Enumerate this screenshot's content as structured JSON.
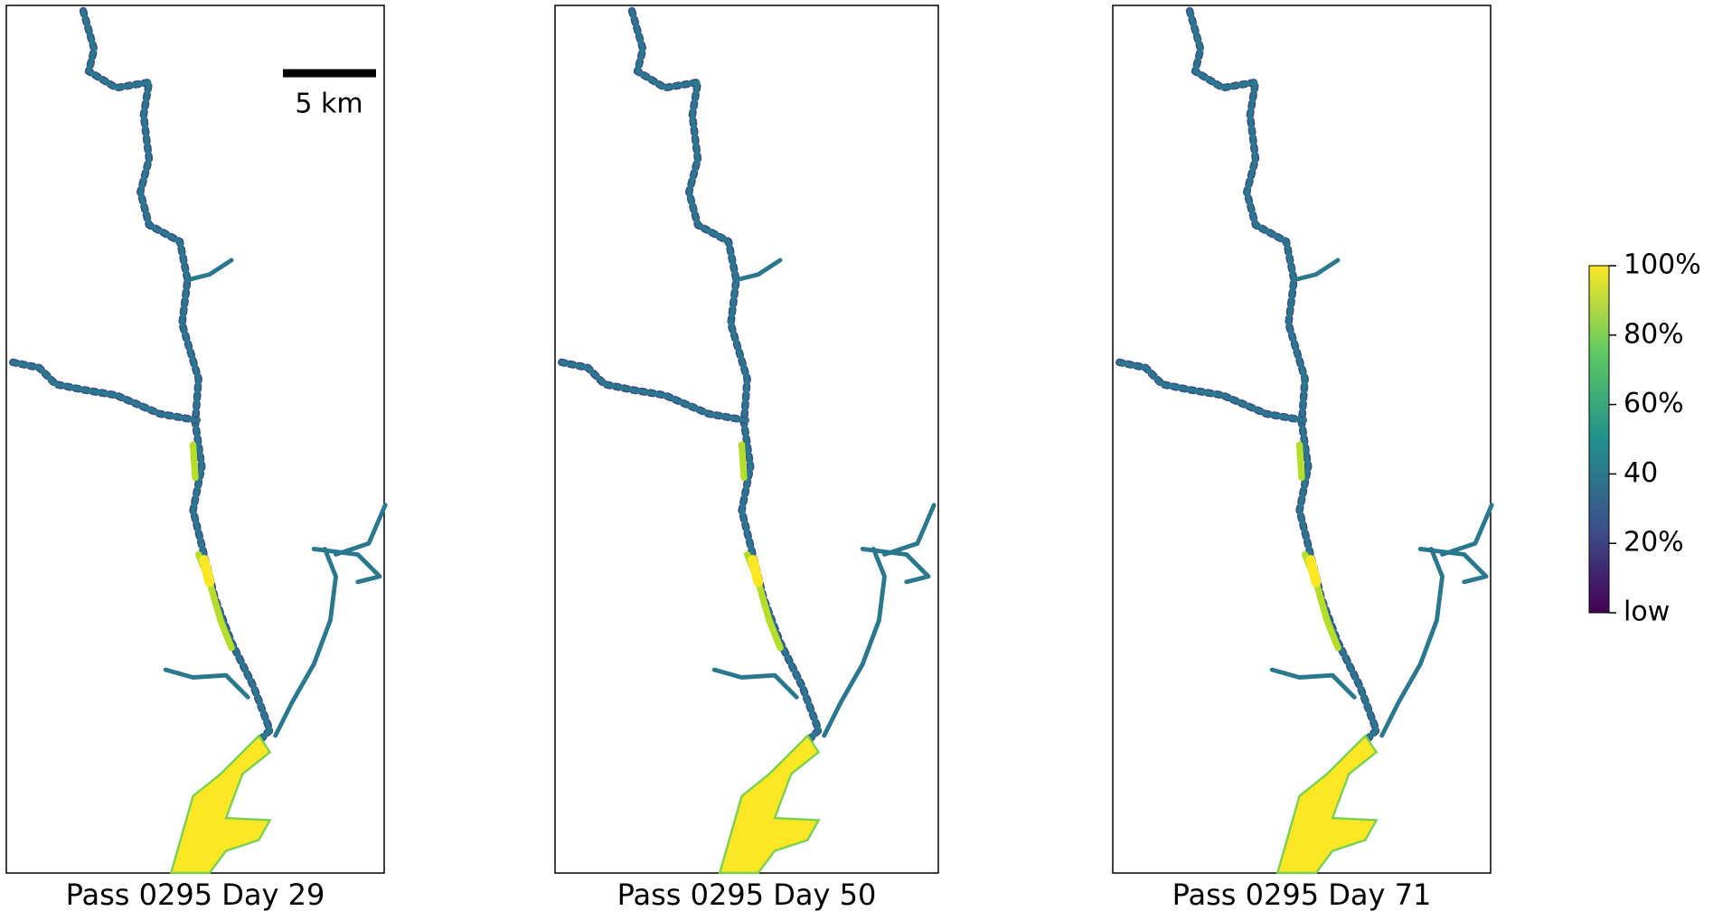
{
  "panels": [
    {
      "title": "Pass 0295 Day 29"
    },
    {
      "title": "Pass 0295 Day 50"
    },
    {
      "title": "Pass 0295 Day 71"
    }
  ],
  "scale_bar": {
    "label": "5 km"
  },
  "colorbar": {
    "range": [
      0,
      100
    ],
    "ticks": [
      {
        "value": 100,
        "label": "100%"
      },
      {
        "value": 80,
        "label": "80%"
      },
      {
        "value": 60,
        "label": "60%"
      },
      {
        "value": 40,
        "label": "40"
      },
      {
        "value": 20,
        "label": "20%"
      },
      {
        "value": 0,
        "label": "low"
      }
    ]
  }
}
